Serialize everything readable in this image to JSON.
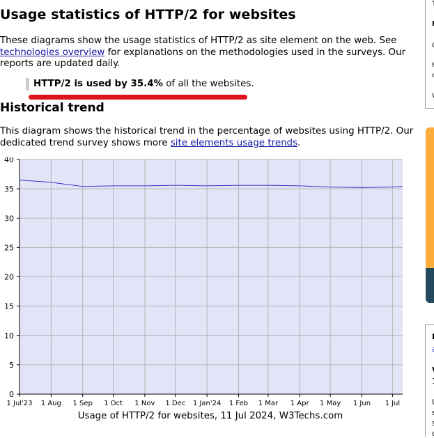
{
  "page": {
    "title": "Usage statistics of HTTP/2 for websites",
    "intro_before_link": "These diagrams show the usage statistics of HTTP/2 as site element on the web. See ",
    "intro_link": "technologies overview",
    "intro_after_link": " for explanations on the methodologies used in the surveys. Our reports are updated daily.",
    "callout_bold": "HTTP/2 is used by 35.4%",
    "callout_rest": " of all the websites.",
    "section_heading": "Historical trend",
    "trend_before_link": "This diagram shows the historical trend in the percentage of websites using HTTP/2. Our dedicated trend survey shows more ",
    "trend_link": "site elements usage trends",
    "trend_after_link": ".",
    "chart_caption": "Usage of HTTP/2 for websites, 11 Jul 2024, W3Techs.com"
  },
  "sidebar": {
    "top_fragments": [
      "T",
      "H",
      "C",
      "H",
      "c",
      "V"
    ],
    "bottom_fragments": [
      "I",
      "a",
      "V",
      "1",
      "U",
      "s",
      "s",
      "c"
    ]
  },
  "colors": {
    "link": "#1a1aa6",
    "highlight_underline": "#e0141c",
    "plot_background": "#e4e4f8",
    "series_line": "#3333cc",
    "ad_orange": "#fcad3c",
    "ad_dark": "#234a5c"
  },
  "chart_data": {
    "type": "line",
    "title": "",
    "xlabel": "",
    "ylabel": "",
    "ylim": [
      0,
      40
    ],
    "yticks": [
      0,
      5,
      10,
      15,
      20,
      25,
      30,
      35,
      40
    ],
    "x_tick_labels": [
      "1 Jul'23",
      "1 Aug",
      "1 Sep",
      "1 Oct",
      "1 Nov",
      "1 Dec",
      "1 Jan'24",
      "1 Feb",
      "1 Mar",
      "1 Apr",
      "1 May",
      "1 Jun",
      "1 Jul"
    ],
    "grid": true,
    "series": [
      {
        "x": [
          "2023-07-01",
          "2023-08-01",
          "2023-09-01",
          "2023-10-01",
          "2023-11-01",
          "2023-12-01",
          "2024-01-01",
          "2024-02-01",
          "2024-03-01",
          "2024-04-01",
          "2024-05-01",
          "2024-06-01",
          "2024-07-01",
          "2024-07-11"
        ],
        "values": [
          36.5,
          36.1,
          35.4,
          35.5,
          35.5,
          35.6,
          35.5,
          35.6,
          35.6,
          35.5,
          35.3,
          35.2,
          35.3,
          35.4
        ]
      }
    ]
  }
}
